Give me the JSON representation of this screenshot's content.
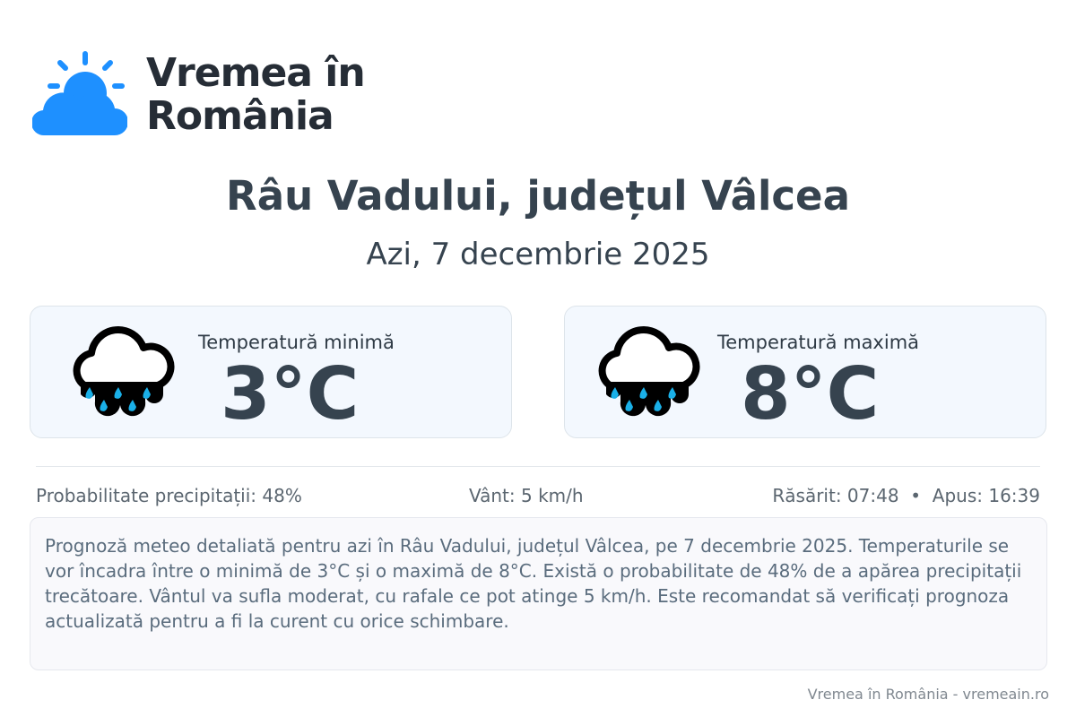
{
  "logo": {
    "line1": "Vremea în",
    "line2": "România",
    "icon": "sun-cloud-icon",
    "color": "#1e90ff"
  },
  "title": "Râu Vadului, județul Vâlcea",
  "date": "Azi, 7 decembrie 2025",
  "cards": [
    {
      "label": "Temperatură minimă",
      "value": "3°C",
      "icon": "rain-cloud-icon"
    },
    {
      "label": "Temperatură maximă",
      "value": "8°C",
      "icon": "rain-cloud-icon"
    }
  ],
  "info": {
    "precipitation": "Probabilitate precipitații: 48%",
    "wind": "Vânt: 5 km/h",
    "sun": "Răsărit: 07:48  •  Apus: 16:39"
  },
  "description": "Prognoză meteo detaliată pentru azi în Râu Vadului, județul Vâlcea, pe 7 decembrie 2025. Temperaturile se vor încadra între o minimă de 3°C și o maximă de 8°C. Există o probabilitate de 48% de a apărea precipitații trecătoare. Vântul va sufla moderat, cu rafale ce pot atinge 5 km/h. Este recomandat să verificați prognoza actualizată pentru a fi la curent cu orice schimbare.",
  "footer": "Vremea în România - vremeain.ro"
}
